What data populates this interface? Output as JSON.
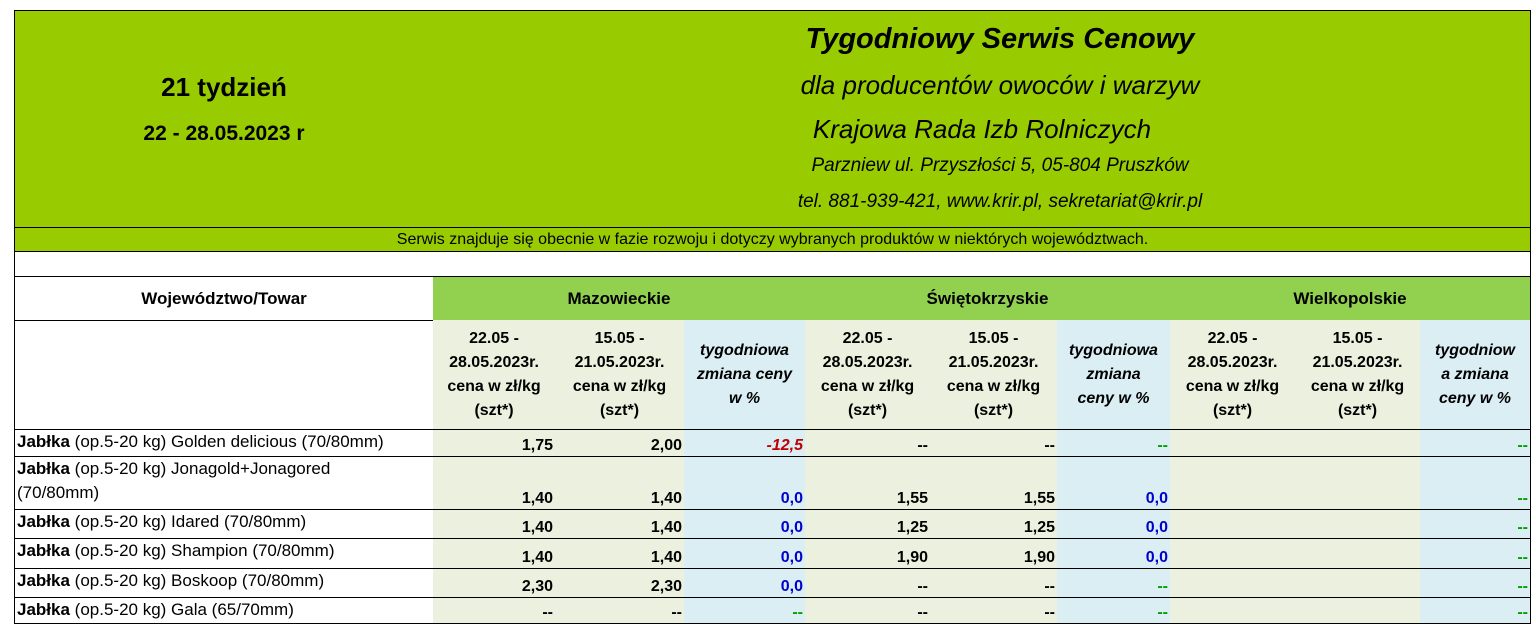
{
  "week": {
    "label": "21 tydzień",
    "dates": "22 - 28.05.2023 r"
  },
  "header": {
    "title": "Tygodniowy Serwis Cenowy",
    "subtitle1": "dla producentów owoców i warzyw",
    "subtitle2": "Krajowa Rada Izb Rolniczych",
    "address": "Parzniew ul. Przyszłości 5, 05-804 Pruszków",
    "contact": "tel. 881-939-421, www.krir.pl, sekretariat@krir.pl"
  },
  "notice": "Serwis znajduje się obecnie w  fazie rozwoju i dotyczy wybranych produktów w niektórych województwach.",
  "table": {
    "corner_label": "Województwo/Towar",
    "regions": [
      "Mazowieckie",
      "Świętokrzyskie",
      "Wielkopolskie"
    ],
    "subheaders": {
      "current": [
        "22.05 -",
        "28.05.2023r.",
        "cena w zł/kg",
        "(szt*)"
      ],
      "previous": [
        "15.05 -",
        "21.05.2023r.",
        "cena w zł/kg",
        "(szt*)"
      ],
      "change_a": [
        "tygodniowa",
        "zmiana ceny",
        "w %"
      ],
      "change_b": [
        "tygodniowa",
        "zmiana",
        "ceny w %"
      ],
      "change_c": [
        "tygodniow",
        "a zmiana",
        "ceny w %"
      ]
    },
    "rows": [
      {
        "bold": "Jabłka",
        "rest": " (op.5-20 kg)  Golden delicious  (70/80mm)",
        "rest2": "",
        "values": [
          "1,75",
          "2,00",
          "-12,5",
          "--",
          "--",
          "--",
          "",
          "",
          "--"
        ]
      },
      {
        "bold": "Jabłka",
        "rest": " (op.5-20 kg) Jonagold+Jonagored",
        "rest2": "(70/80mm)",
        "values": [
          "1,40",
          "1,40",
          "0,0",
          "1,55",
          "1,55",
          "0,0",
          "",
          "",
          "--"
        ]
      },
      {
        "bold": "Jabłka",
        "rest": " (op.5-20 kg)  Idared (70/80mm)",
        "rest2": "",
        "values": [
          "1,40",
          "1,40",
          "0,0",
          "1,25",
          "1,25",
          "0,0",
          "",
          "",
          "--"
        ]
      },
      {
        "bold": "Jabłka",
        "rest": " (op.5-20 kg) Shampion (70/80mm)",
        "rest2": "",
        "values": [
          "1,40",
          "1,40",
          "0,0",
          "1,90",
          "1,90",
          "0,0",
          "",
          "",
          "--"
        ]
      },
      {
        "bold": "Jabłka",
        "rest": " (op.5-20 kg) Boskoop (70/80mm)",
        "rest2": "",
        "values": [
          "2,30",
          "2,30",
          "0,0",
          "--",
          "--",
          "--",
          "",
          "",
          "--"
        ]
      },
      {
        "bold": "Jabłka",
        "rest": " (op.5-20 kg) Gala (65/70mm)",
        "rest2": "",
        "values": [
          "--",
          "--",
          "--",
          "--",
          "--",
          "--",
          "",
          "",
          "--"
        ]
      }
    ]
  }
}
